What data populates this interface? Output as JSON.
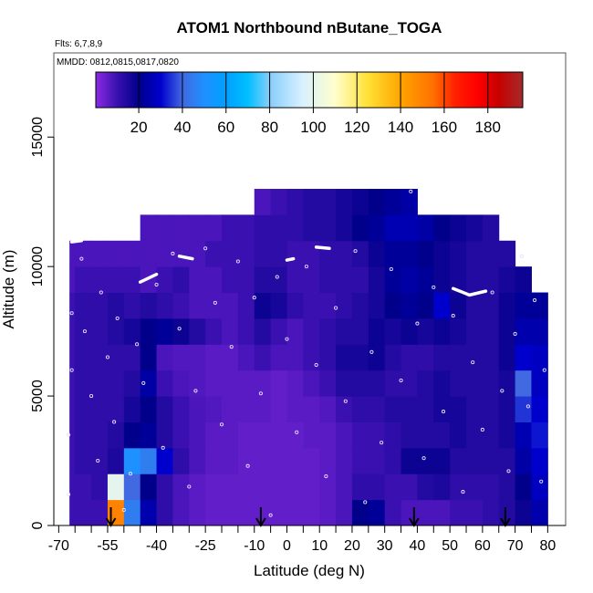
{
  "chart_data": {
    "type": "heatmap",
    "title": "ATOM1 Northbound nButane_TOGA",
    "subtitle": "Flts: 6,7,8,9",
    "annotation": "MMDD: 0812,0815,0817,0820",
    "xlabel": "Latitude (deg N)",
    "ylabel": "Altitude (m)",
    "xlim": [
      -71.5,
      85.5
    ],
    "ylim": [
      0,
      18250
    ],
    "x_ticks": [
      -70,
      -65,
      -60,
      -55,
      -50,
      -45,
      -40,
      -35,
      -30,
      -25,
      -20,
      -15,
      -10,
      -5,
      0,
      5,
      10,
      15,
      20,
      25,
      30,
      35,
      40,
      45,
      50,
      55,
      60,
      65,
      70,
      75,
      80
    ],
    "x_tick_labels": [
      {
        "value": -70,
        "label": "-70"
      },
      {
        "value": -55,
        "label": "-55"
      },
      {
        "value": -40,
        "label": "-40"
      },
      {
        "value": -25,
        "label": "-25"
      },
      {
        "value": -10,
        "label": "-10"
      },
      {
        "value": 0,
        "label": "0"
      },
      {
        "value": 10,
        "label": "10"
      },
      {
        "value": 20,
        "label": "20"
      },
      {
        "value": 30,
        "label": "30"
      },
      {
        "value": 40,
        "label": "40"
      },
      {
        "value": 50,
        "label": "50"
      },
      {
        "value": 60,
        "label": "60"
      },
      {
        "value": 70,
        "label": "70"
      },
      {
        "value": 80,
        "label": "80"
      }
    ],
    "y_ticks": [
      {
        "value": 0,
        "label": "0"
      },
      {
        "value": 5000,
        "label": "5000"
      },
      {
        "value": 10000,
        "label": "10000"
      },
      {
        "value": 15000,
        "label": "15000"
      }
    ],
    "grid": false,
    "colorbar": {
      "range": [
        0.3,
        196
      ],
      "tick_labels": [
        {
          "value": 20,
          "label": "20"
        },
        {
          "value": 40,
          "label": "40"
        },
        {
          "value": 60,
          "label": "60"
        },
        {
          "value": 80,
          "label": "80"
        },
        {
          "value": 100,
          "label": "100"
        },
        {
          "value": 120,
          "label": "120"
        },
        {
          "value": 140,
          "label": "140"
        },
        {
          "value": 160,
          "label": "160"
        },
        {
          "value": 180,
          "label": "180"
        }
      ],
      "stops": [
        [
          0,
          "#8a2be2"
        ],
        [
          10,
          "#3a10b0"
        ],
        [
          20,
          "#00008b"
        ],
        [
          30,
          "#0000cd"
        ],
        [
          40,
          "#4169e1"
        ],
        [
          50,
          "#1e90ff"
        ],
        [
          60,
          "#00a0ff"
        ],
        [
          70,
          "#00bfff"
        ],
        [
          80,
          "#87cefa"
        ],
        [
          95,
          "#d8f0ff"
        ],
        [
          110,
          "#ffffcc"
        ],
        [
          125,
          "#ffe135"
        ],
        [
          140,
          "#ffa500"
        ],
        [
          155,
          "#ff7000"
        ],
        [
          165,
          "#ff2000"
        ],
        [
          175,
          "#ff0000"
        ],
        [
          185,
          "#c80000"
        ],
        [
          196,
          "#a52a2a"
        ]
      ]
    },
    "lat_bin_edges_start": -70,
    "lat_bin_width": 5,
    "alt_bin_width": 1000,
    "grid_values": [
      [
        10,
        10,
        10,
        150,
        45,
        25,
        12,
        8,
        6,
        5,
        5,
        5,
        5,
        5,
        5,
        5,
        6,
        8,
        20,
        22,
        10,
        8,
        8,
        8,
        10,
        10,
        12,
        14,
        18,
        25
      ],
      [
        10,
        10,
        12,
        100,
        40,
        20,
        12,
        8,
        6,
        5,
        5,
        5,
        5,
        5,
        5,
        5,
        6,
        8,
        12,
        12,
        10,
        10,
        14,
        15,
        12,
        12,
        12,
        14,
        20,
        28
      ],
      [
        10,
        12,
        12,
        15,
        50,
        45,
        30,
        12,
        8,
        6,
        6,
        5,
        5,
        5,
        5,
        5,
        6,
        8,
        10,
        10,
        12,
        18,
        18,
        18,
        14,
        14,
        14,
        14,
        24,
        30
      ],
      [
        10,
        12,
        12,
        14,
        20,
        22,
        14,
        10,
        8,
        6,
        6,
        5,
        5,
        5,
        5,
        6,
        6,
        8,
        10,
        10,
        12,
        14,
        14,
        14,
        16,
        14,
        14,
        16,
        26,
        32
      ],
      [
        10,
        12,
        12,
        12,
        16,
        20,
        14,
        10,
        8,
        7,
        6,
        6,
        6,
        5,
        6,
        6,
        7,
        10,
        12,
        12,
        14,
        14,
        14,
        16,
        16,
        14,
        14,
        16,
        35,
        30
      ],
      [
        10,
        12,
        12,
        12,
        14,
        24,
        10,
        8,
        7,
        6,
        6,
        6,
        6,
        5,
        6,
        8,
        10,
        14,
        14,
        14,
        12,
        12,
        14,
        16,
        14,
        14,
        14,
        16,
        40,
        28
      ],
      [
        10,
        12,
        12,
        12,
        12,
        20,
        8,
        7,
        7,
        6,
        6,
        8,
        10,
        8,
        8,
        10,
        12,
        16,
        16,
        18,
        14,
        12,
        12,
        14,
        14,
        14,
        14,
        18,
        30,
        28
      ],
      [
        10,
        12,
        12,
        14,
        16,
        20,
        22,
        18,
        14,
        10,
        8,
        10,
        14,
        10,
        8,
        10,
        12,
        14,
        14,
        18,
        16,
        18,
        16,
        18,
        16,
        14,
        14,
        18,
        25,
        25
      ],
      [
        10,
        12,
        12,
        14,
        12,
        14,
        12,
        10,
        8,
        8,
        8,
        10,
        18,
        16,
        12,
        10,
        10,
        12,
        14,
        16,
        20,
        22,
        20,
        30,
        18,
        14,
        14,
        18,
        22,
        22
      ],
      [
        8,
        10,
        10,
        10,
        10,
        8,
        10,
        12,
        8,
        8,
        10,
        10,
        14,
        14,
        10,
        10,
        12,
        12,
        12,
        16,
        22,
        24,
        22,
        18,
        16,
        14,
        14,
        16,
        18,
        null
      ],
      [
        8,
        8,
        8,
        8,
        8,
        8,
        8,
        8,
        8,
        10,
        10,
        10,
        12,
        12,
        10,
        10,
        12,
        12,
        14,
        18,
        22,
        22,
        20,
        18,
        16,
        14,
        14,
        14,
        null,
        null
      ],
      [
        null,
        null,
        null,
        null,
        null,
        8,
        8,
        8,
        8,
        8,
        10,
        10,
        12,
        12,
        12,
        14,
        14,
        16,
        20,
        22,
        26,
        26,
        24,
        20,
        18,
        16,
        14,
        null,
        null,
        null
      ],
      [
        null,
        null,
        null,
        null,
        null,
        null,
        null,
        null,
        null,
        null,
        null,
        null,
        8,
        10,
        12,
        14,
        14,
        16,
        18,
        20,
        22,
        24,
        null,
        null,
        null,
        null,
        null,
        null,
        null,
        null
      ]
    ],
    "sample_points": [
      [
        -67,
        1200
      ],
      [
        -67,
        3500
      ],
      [
        -66,
        6000
      ],
      [
        -66,
        8200
      ],
      [
        -63,
        10300
      ],
      [
        -62,
        7500
      ],
      [
        -60,
        5000
      ],
      [
        -58,
        2500
      ],
      [
        -57,
        9000
      ],
      [
        -55,
        6500
      ],
      [
        -53,
        4000
      ],
      [
        -52,
        8000
      ],
      [
        -50,
        600
      ],
      [
        -48,
        2000
      ],
      [
        -46,
        7000
      ],
      [
        -44,
        5500
      ],
      [
        -40,
        9300
      ],
      [
        -38,
        3000
      ],
      [
        -35,
        10500
      ],
      [
        -33,
        7600
      ],
      [
        -30,
        1500
      ],
      [
        -28,
        5200
      ],
      [
        -25,
        10700
      ],
      [
        -22,
        8600
      ],
      [
        -20,
        3900
      ],
      [
        -17,
        6900
      ],
      [
        -15,
        10200
      ],
      [
        -12,
        2300
      ],
      [
        -10,
        8800
      ],
      [
        -8,
        5100
      ],
      [
        -5,
        400
      ],
      [
        -3,
        9600
      ],
      [
        0,
        7200
      ],
      [
        3,
        3600
      ],
      [
        6,
        10000
      ],
      [
        9,
        6200
      ],
      [
        12,
        1900
      ],
      [
        15,
        8400
      ],
      [
        18,
        4800
      ],
      [
        21,
        10600
      ],
      [
        24,
        900
      ],
      [
        26,
        6700
      ],
      [
        29,
        3200
      ],
      [
        32,
        9900
      ],
      [
        35,
        5600
      ],
      [
        38,
        12900
      ],
      [
        40,
        7800
      ],
      [
        42,
        2600
      ],
      [
        45,
        9200
      ],
      [
        48,
        4400
      ],
      [
        51,
        8100
      ],
      [
        54,
        1300
      ],
      [
        57,
        6300
      ],
      [
        60,
        3700
      ],
      [
        63,
        9000
      ],
      [
        66,
        5200
      ],
      [
        68,
        2100
      ],
      [
        70,
        7400
      ],
      [
        72,
        10400
      ],
      [
        74,
        4600
      ],
      [
        76,
        8700
      ],
      [
        78,
        1700
      ],
      [
        79,
        6000
      ]
    ],
    "flight_segments": [
      [
        [
          -66,
          10950
        ],
        [
          -63,
          11000
        ]
      ],
      [
        [
          -45,
          9400
        ],
        [
          -40,
          9700
        ]
      ],
      [
        [
          -33,
          10400
        ],
        [
          -29,
          10300
        ]
      ],
      [
        [
          51,
          9150
        ],
        [
          56,
          8900
        ],
        [
          61,
          9050
        ]
      ],
      [
        [
          0,
          10250
        ],
        [
          2,
          10300
        ]
      ],
      [
        [
          9,
          10750
        ],
        [
          13,
          10700
        ]
      ]
    ],
    "arrows": [
      -54,
      -8,
      39,
      67
    ]
  }
}
